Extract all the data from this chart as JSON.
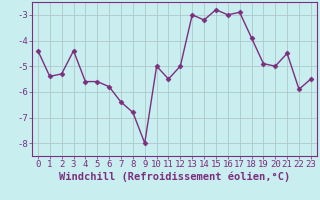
{
  "x": [
    0,
    1,
    2,
    3,
    4,
    5,
    6,
    7,
    8,
    9,
    10,
    11,
    12,
    13,
    14,
    15,
    16,
    17,
    18,
    19,
    20,
    21,
    22,
    23
  ],
  "y": [
    -4.4,
    -5.4,
    -5.3,
    -4.4,
    -5.6,
    -5.6,
    -5.8,
    -6.4,
    -6.8,
    -8.0,
    -5.0,
    -5.5,
    -5.0,
    -3.0,
    -3.2,
    -2.8,
    -3.0,
    -2.9,
    -3.9,
    -4.9,
    -5.0,
    -4.5,
    -5.9,
    -5.5
  ],
  "line_color": "#7b2f7e",
  "marker": "D",
  "markersize": 2.5,
  "linewidth": 1.0,
  "background_color": "#c8eef0",
  "grid_color": "#b0c8c8",
  "xlabel": "Windchill (Refroidissement éolien,°C)",
  "xlabel_fontsize": 7.5,
  "xlim": [
    -0.5,
    23.5
  ],
  "ylim": [
    -8.5,
    -2.5
  ],
  "yticks": [
    -8,
    -7,
    -6,
    -5,
    -4,
    -3
  ],
  "xticks": [
    0,
    1,
    2,
    3,
    4,
    5,
    6,
    7,
    8,
    9,
    10,
    11,
    12,
    13,
    14,
    15,
    16,
    17,
    18,
    19,
    20,
    21,
    22,
    23
  ],
  "tick_fontsize": 6.5,
  "spine_color": "#7b2f7e"
}
